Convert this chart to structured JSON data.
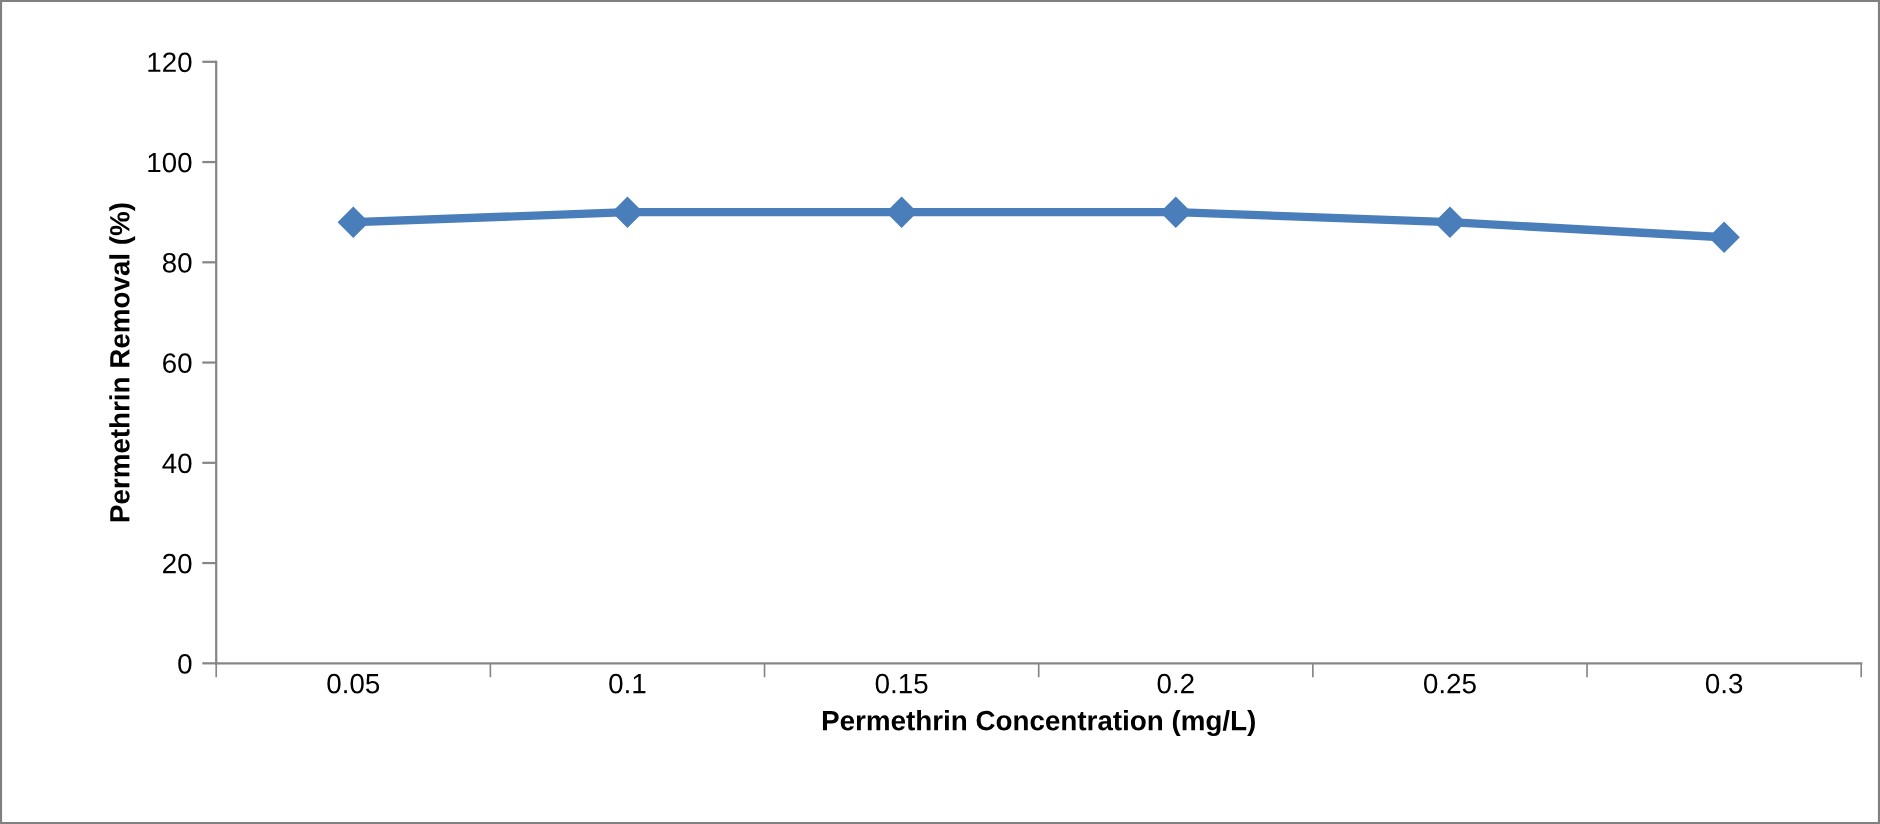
{
  "chart_data": {
    "type": "line",
    "xlabel": "Permethrin Concentration (mg/L)",
    "ylabel": "Permethrin Removal (%)",
    "categories": [
      "0.05",
      "0.1",
      "0.15",
      "0.2",
      "0.25",
      "0.3"
    ],
    "series": [
      {
        "color": "#4a7ebb",
        "values": [
          88,
          90,
          90,
          90,
          88,
          85
        ]
      }
    ],
    "ylim": [
      0,
      120
    ],
    "yticks": [
      0,
      20,
      40,
      60,
      80,
      100,
      120
    ],
    "grid": false,
    "marker": "diamond",
    "line_style": "solid",
    "legend": false
  }
}
